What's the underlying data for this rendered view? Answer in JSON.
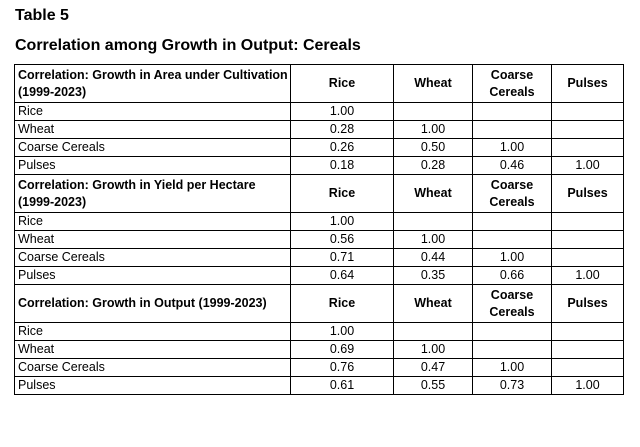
{
  "table_number": "Table 5",
  "title": "Correlation among Growth in Output: Cereals",
  "columns": [
    "Rice",
    "Wheat",
    "Coarse Cereals",
    "Pulses"
  ],
  "sections": [
    {
      "heading": "Correlation: Growth in Area under Cultivation (1999-2023)",
      "rows": [
        {
          "label": "Rice",
          "values": [
            "1.00",
            "",
            "",
            ""
          ]
        },
        {
          "label": "Wheat",
          "values": [
            "0.28",
            "1.00",
            "",
            ""
          ]
        },
        {
          "label": "Coarse Cereals",
          "values": [
            "0.26",
            "0.50",
            "1.00",
            ""
          ]
        },
        {
          "label": "Pulses",
          "values": [
            "0.18",
            "0.28",
            "0.46",
            "1.00"
          ]
        }
      ]
    },
    {
      "heading": "Correlation: Growth in Yield per Hectare (1999-2023)",
      "rows": [
        {
          "label": "Rice",
          "values": [
            "1.00",
            "",
            "",
            ""
          ]
        },
        {
          "label": "Wheat",
          "values": [
            "0.56",
            "1.00",
            "",
            ""
          ]
        },
        {
          "label": "Coarse Cereals",
          "values": [
            "0.71",
            "0.44",
            "1.00",
            ""
          ]
        },
        {
          "label": "Pulses",
          "values": [
            "0.64",
            "0.35",
            "0.66",
            "1.00"
          ]
        }
      ]
    },
    {
      "heading": "Correlation: Growth in Output (1999-2023)",
      "rows": [
        {
          "label": "Rice",
          "values": [
            "1.00",
            "",
            "",
            ""
          ]
        },
        {
          "label": "Wheat",
          "values": [
            "0.69",
            "1.00",
            "",
            ""
          ]
        },
        {
          "label": "Coarse Cereals",
          "values": [
            "0.76",
            "0.47",
            "1.00",
            ""
          ]
        },
        {
          "label": "Pulses",
          "values": [
            "0.61",
            "0.55",
            "0.73",
            "1.00"
          ]
        }
      ]
    }
  ]
}
